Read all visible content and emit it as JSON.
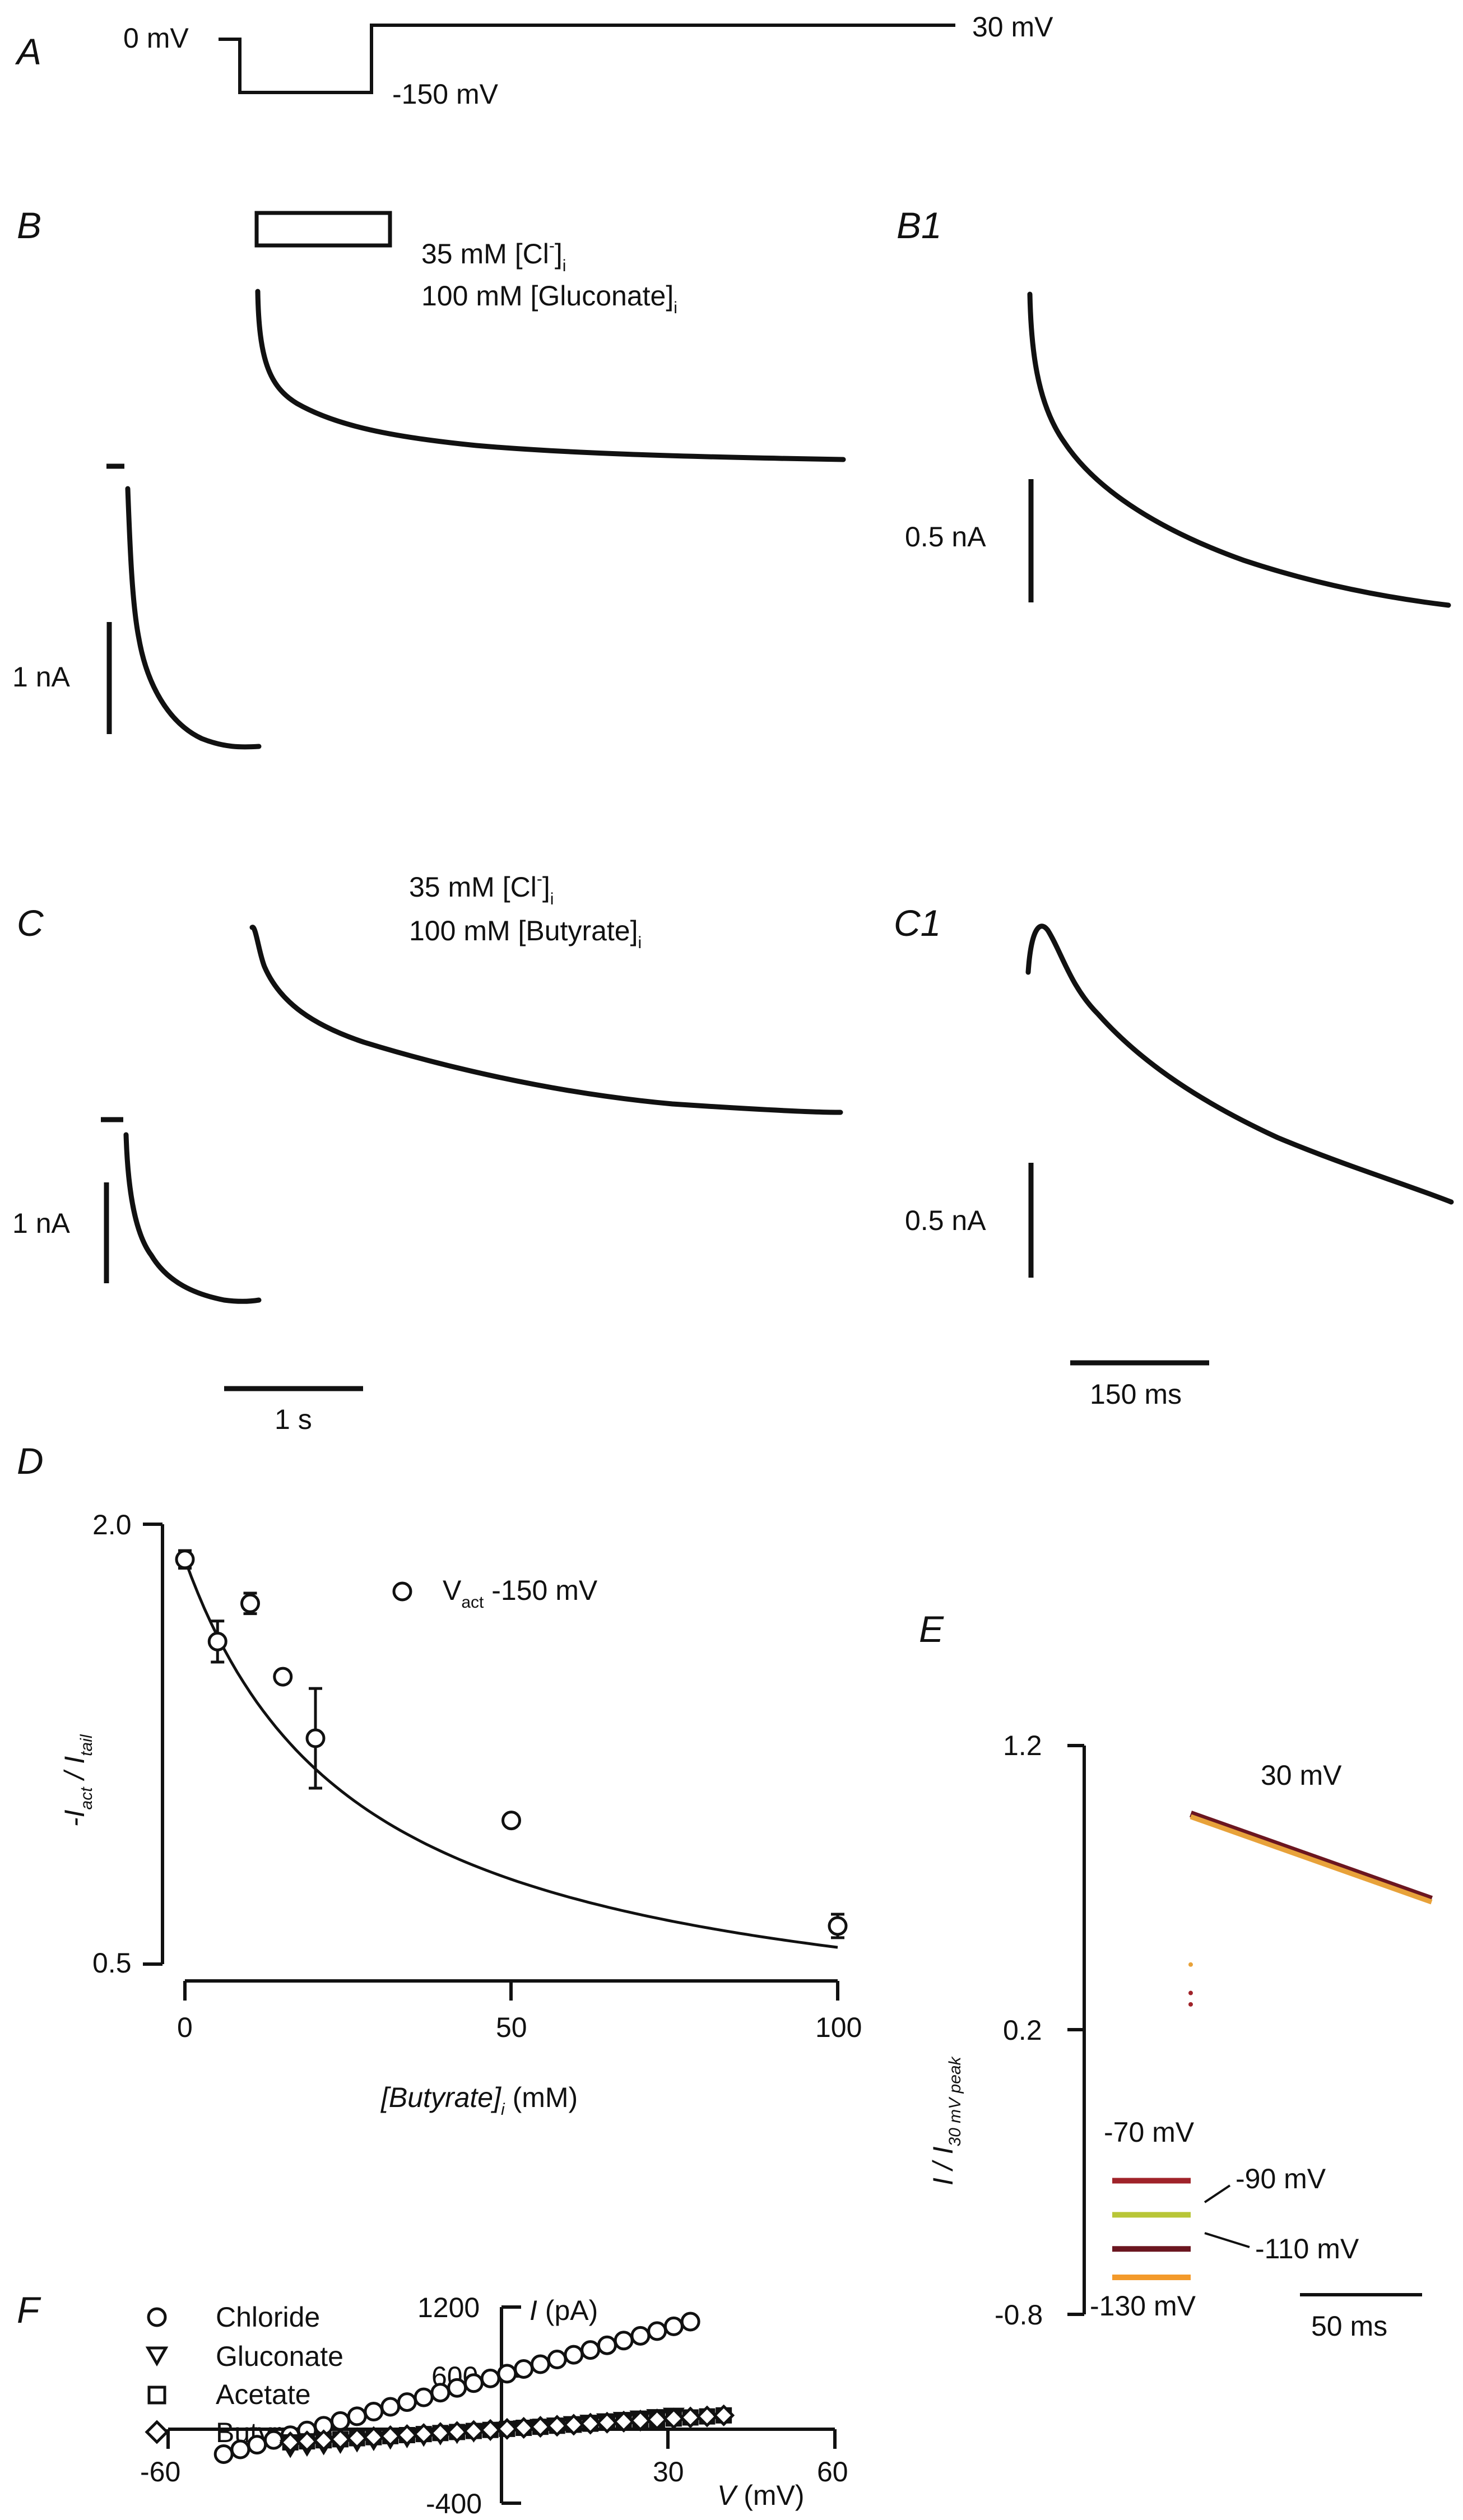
{
  "panels": {
    "A": {
      "label": "A",
      "protocol": {
        "hold": "0 mV",
        "step": "-150 mV",
        "test": "30 mV"
      }
    },
    "B": {
      "label": "B",
      "condition_cl": "35 mM [Cl",
      "condition_cl_sup": "-",
      "condition_cl_sub": "i",
      "condition_anion": "100 mM [Gluconate]",
      "condition_anion_sub": "i",
      "scalebar": "1 nA"
    },
    "B1": {
      "label": "B1",
      "scalebar": "0.5 nA"
    },
    "C": {
      "label": "C",
      "condition_cl": "35 mM [Cl",
      "condition_cl_sup": "-",
      "condition_cl_sub": "i",
      "condition_anion": "100 mM [Butyrate]",
      "condition_anion_sub": "i",
      "scalebar_y": "1 nA",
      "scalebar_x": "1 s"
    },
    "C1": {
      "label": "C1",
      "scalebar_y": "0.5 nA",
      "scalebar_x": "150 ms"
    },
    "D": {
      "label": "D"
    },
    "E": {
      "label": "E"
    },
    "F": {
      "label": "F"
    }
  },
  "chart_data": [
    {
      "id": "D",
      "type": "scatter",
      "xlabel": "[Butyrate]",
      "xlabel_sub": "i",
      "xlabel_unit": " (mM)",
      "ylabel": "-I",
      "ylabel_sub1": "act",
      "ylabel_mid": " / I",
      "ylabel_sub2": "tail",
      "xlim": [
        0,
        100
      ],
      "ylim": [
        0.5,
        2.0
      ],
      "xticks": [
        "0",
        "50",
        "100"
      ],
      "yticks": [
        "2.0",
        "0.5"
      ],
      "legend": "V",
      "legend_sub": "act",
      "legend_val": " -150 mV",
      "points": [
        {
          "x": 0,
          "y": 1.88,
          "err": 0.03
        },
        {
          "x": 5,
          "y": 1.6,
          "err": 0.07
        },
        {
          "x": 10,
          "y": 1.73,
          "err": 0.035
        },
        {
          "x": 15,
          "y": 1.48,
          "err": 0.02
        },
        {
          "x": 20,
          "y": 1.27,
          "err": 0.17
        },
        {
          "x": 50,
          "y": 0.99,
          "err": 0.01
        },
        {
          "x": 100,
          "y": 0.63,
          "err": 0.04
        }
      ],
      "fit": {
        "Kd": 27.0,
        "y0": 1.88,
        "ymin": 0.2
      }
    },
    {
      "id": "E",
      "type": "line",
      "ylabel": "I / I",
      "ylabel_sub": "30 mV peak",
      "ylim": [
        -0.8,
        1.2
      ],
      "yticks": [
        "1.2",
        "0.2",
        "-0.8"
      ],
      "scalebar_x": "50 ms",
      "series": [
        {
          "name": "30 mV",
          "color": "#e8a23a",
          "start": 0.95,
          "end": 0.65
        },
        {
          "name": "-70 mV",
          "color": "#a0232a",
          "level": -0.33
        },
        {
          "name": "-90 mV",
          "color": "#b8c637",
          "level": -0.45
        },
        {
          "name": "-110 mV",
          "color": "#6b1620",
          "level": -0.57
        },
        {
          "name": "-130 mV",
          "color": "#f39a2b",
          "level": -0.67
        }
      ]
    },
    {
      "id": "F",
      "type": "scatter",
      "xlabel": "V",
      "xlabel_unit": " (mV)",
      "ylabel": "I",
      "ylabel_unit": " (pA)",
      "xlim": [
        -60,
        60
      ],
      "ylim": [
        -400,
        1200
      ],
      "xticks": [
        "-60",
        "30",
        "60"
      ],
      "yticks": [
        "1200",
        "600",
        "-400"
      ],
      "series": [
        {
          "name": "Chloride",
          "marker": "circle",
          "x0": -50,
          "x1": 34,
          "step": 3,
          "slope": 15.5,
          "intercept": 530
        },
        {
          "name": "Gluconate",
          "marker": "triangle",
          "x0": -38,
          "x1": 31,
          "step": 3,
          "slope": 4.6,
          "intercept": 0
        },
        {
          "name": "Acetate",
          "marker": "square",
          "x0": -38,
          "x1": 40,
          "step": 3,
          "slope": 3.4,
          "intercept": 0
        },
        {
          "name": "Butyrate",
          "marker": "diamond",
          "x0": -38,
          "x1": 40,
          "step": 3,
          "slope": 3.4,
          "intercept": 0
        }
      ]
    }
  ]
}
